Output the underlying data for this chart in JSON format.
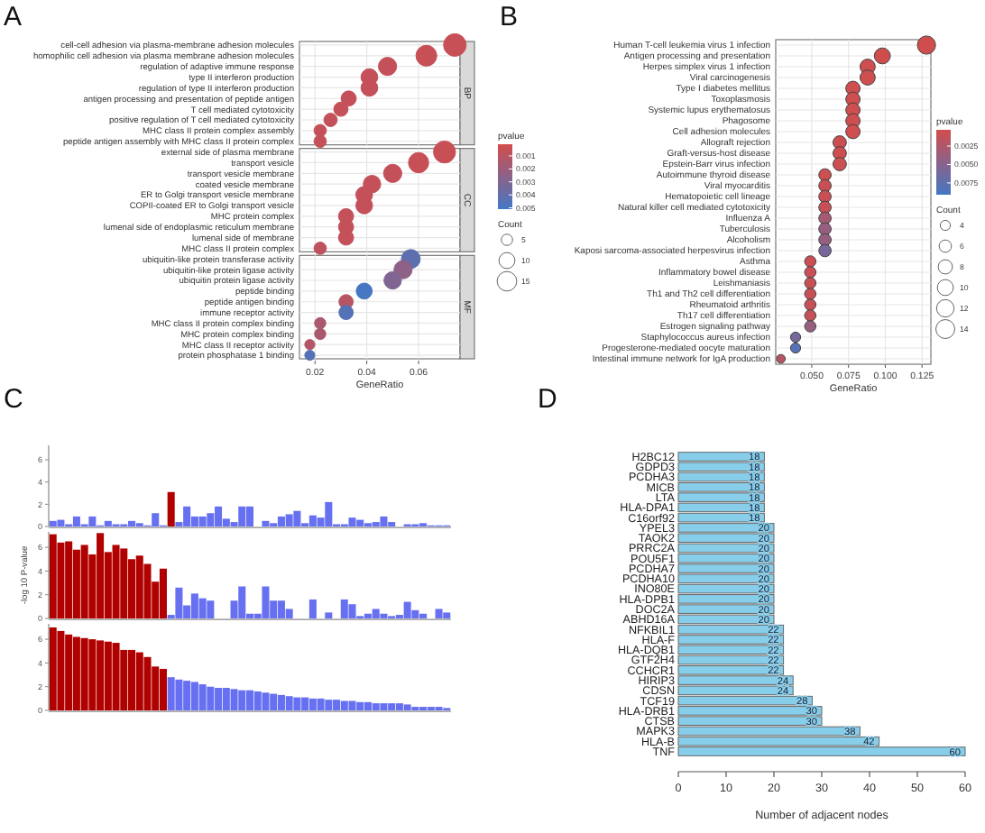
{
  "chart_data": [
    {
      "type": "scatter",
      "orientation": "horizontal",
      "title": "A",
      "xlabel": "GeneRatio",
      "categories": [
        "cell-cell adhesion via plasma-membrane adhesion molecules",
        "homophilic cell adhesion via plasma membrane adhesion molecules",
        "regulation of adaptive immune response",
        "type II interferon production",
        "regulation of type II interferon production",
        "antigen processing and presentation of peptide antigen",
        "T cell mediated cytotoxicity",
        "positive regulation of T cell mediated cytotoxicity",
        "MHC class II protein complex assembly",
        "peptide antigen assembly with MHC class II protein complex",
        "external side of plasma membrane",
        "transport vesicle",
        "transport vesicle membrane",
        "coated vesicle membrane",
        "ER to Golgi transport vesicle membrane",
        "COPII-coated ER to Golgi transport vesicle",
        "MHC protein complex",
        "lumenal side of endoplasmic reticulum membrane",
        "lumenal side of membrane",
        "MHC class II protein complex",
        "ubiquitin-like protein transferase activity",
        "ubiquitin-like protein ligase activity",
        "ubiquitin protein ligase activity",
        "peptide binding",
        "peptide antigen binding",
        "immune receptor activity",
        "MHC class II protein complex binding",
        "MHC protein complex binding",
        "MHC class II receptor activity",
        "protein phosphatase 1 binding"
      ],
      "series": [
        {
          "colors": [
            "#c75056",
            "#c75056",
            "#c45159",
            "#c45159",
            "#c45159",
            "#c45159",
            "#c45159",
            "#c45159",
            "#c45159",
            "#c45159",
            null,
            null,
            null,
            null,
            null,
            null,
            null,
            null,
            null,
            null,
            null,
            null,
            null,
            null,
            null,
            null,
            null,
            null,
            null,
            null
          ],
          "values": [
            0.074,
            0.063,
            0.048,
            0.041,
            0.041,
            0.033,
            0.03,
            0.026,
            0.022,
            0.022,
            null,
            null,
            null,
            null,
            null,
            null,
            null,
            null,
            null,
            null,
            null,
            null,
            null,
            null,
            null,
            null,
            null,
            null,
            null,
            null
          ],
          "sizes": [
            20,
            17,
            13,
            11,
            11,
            9,
            8,
            7,
            6,
            6,
            null,
            null,
            null,
            null,
            null,
            null,
            null,
            null,
            null,
            null,
            null,
            null,
            null,
            null,
            null,
            null,
            null,
            null,
            null,
            null
          ],
          "cvalues": [
            0.0005,
            0.0005,
            0.0006,
            0.0006,
            0.0006,
            0.0006,
            0.0006,
            0.0006,
            0.0006,
            0.0006,
            null,
            null,
            null,
            null,
            null,
            null,
            null,
            null,
            null,
            null,
            null,
            null,
            null,
            null,
            null,
            null,
            null,
            null,
            null,
            null
          ]
        },
        {
          "colors": [
            null,
            null,
            null,
            null,
            null,
            null,
            null,
            null,
            null,
            null,
            "#c75056",
            "#c75056",
            "#c45159",
            "#c45159",
            "#c45159",
            "#c45159",
            "#c45159",
            "#c45159",
            "#c45159",
            "#be535e",
            null,
            null,
            null,
            null,
            null,
            null,
            null,
            null,
            null,
            null
          ],
          "values": [
            null,
            null,
            null,
            null,
            null,
            null,
            null,
            null,
            null,
            null,
            0.07,
            0.06,
            0.05,
            0.042,
            0.039,
            0.039,
            0.032,
            0.032,
            0.032,
            0.022,
            null,
            null,
            null,
            null,
            null,
            null,
            null,
            null,
            null,
            null
          ],
          "sizes": [
            null,
            null,
            null,
            null,
            null,
            null,
            null,
            null,
            null,
            null,
            19,
            16,
            13,
            12,
            11,
            11,
            9,
            9,
            9,
            6,
            null,
            null,
            null,
            null,
            null,
            null,
            null,
            null,
            null,
            null
          ],
          "cvalues": [
            null,
            null,
            null,
            null,
            null,
            null,
            null,
            null,
            null,
            null,
            0.0005,
            0.0005,
            0.0006,
            0.0006,
            0.0006,
            0.0006,
            0.0006,
            0.0006,
            0.0006,
            0.0008,
            null,
            null,
            null,
            null,
            null,
            null,
            null,
            null,
            null,
            null
          ]
        },
        {
          "colors": [
            null,
            null,
            null,
            null,
            null,
            null,
            null,
            null,
            null,
            null,
            null,
            null,
            null,
            null,
            null,
            null,
            null,
            null,
            null,
            null,
            "#5e6faf",
            "#8e6186",
            "#806592",
            "#4776c2",
            "#b85562",
            "#5572b6",
            "#aa596e",
            "#aa596e",
            "#b35667",
            "#5572b6"
          ],
          "values": [
            null,
            null,
            null,
            null,
            null,
            null,
            null,
            null,
            null,
            null,
            null,
            null,
            null,
            null,
            null,
            null,
            null,
            null,
            null,
            null,
            0.057,
            0.054,
            0.05,
            0.039,
            0.032,
            0.032,
            0.022,
            0.022,
            0.018,
            0.018
          ],
          "sizes": [
            null,
            null,
            null,
            null,
            null,
            null,
            null,
            null,
            null,
            null,
            null,
            null,
            null,
            null,
            null,
            null,
            null,
            null,
            null,
            null,
            14,
            13,
            12,
            10,
            8,
            8,
            5,
            5,
            4,
            4
          ],
          "cvalues": [
            null,
            null,
            null,
            null,
            null,
            null,
            null,
            null,
            null,
            null,
            null,
            null,
            null,
            null,
            null,
            null,
            null,
            null,
            null,
            null,
            0.0042,
            0.0025,
            0.003,
            0.005,
            0.001,
            0.0045,
            0.0015,
            0.0015,
            0.0012,
            0.0045
          ]
        }
      ],
      "annotations": [
        "BP",
        "CC",
        "MF"
      ],
      "xlim": [
        0.014,
        0.076
      ],
      "xticks": [
        0.02,
        0.04,
        0.06
      ],
      "clabel": "pvalue",
      "clim": [
        0.0001,
        0.0051
      ],
      "cticks": [
        0.001,
        0.002,
        0.003,
        0.004,
        0.005
      ],
      "legend_title": "Count",
      "size_legend": [
        5,
        10,
        15
      ],
      "grid": true
    },
    {
      "type": "scatter",
      "orientation": "horizontal",
      "title": "B",
      "xlabel": "GeneRatio",
      "categories": [
        "Human T-cell leukemia virus 1 infection",
        "Antigen processing and presentation",
        "Herpes simplex virus 1 infection",
        "Viral carcinogenesis",
        "Type I diabetes mellitus",
        "Toxoplasmosis",
        "Systemic lupus erythematosus",
        "Phagosome",
        "Cell adhesion molecules",
        "Allograft rejection",
        "Graft-versus-host disease",
        "Epstein-Barr virus infection",
        "Autoimmune thyroid disease",
        "Viral myocarditis",
        "Hematopoietic cell lineage",
        "Natural killer cell mediated cytotoxicity",
        "Influenza A",
        "Tuberculosis",
        "Alcoholism",
        "Kaposi sarcoma-associated herpesvirus infection",
        "Asthma",
        "Inflammatory bowel disease",
        "Leishmaniasis",
        "Th1 and Th2 cell differentiation",
        "Rheumatoid arthritis",
        "Th17 cell differentiation",
        "Estrogen signaling pathway",
        "Staphylococcus aureus infection",
        "Progesterone-mediated oocyte maturation",
        "Intestinal immune network for IgA production"
      ],
      "values": [
        0.128,
        0.098,
        0.088,
        0.088,
        0.078,
        0.078,
        0.078,
        0.078,
        0.078,
        0.069,
        0.069,
        0.069,
        0.059,
        0.059,
        0.059,
        0.059,
        0.059,
        0.059,
        0.059,
        0.059,
        0.049,
        0.049,
        0.049,
        0.049,
        0.049,
        0.049,
        0.049,
        0.039,
        0.039,
        0.029
      ],
      "sizes": [
        13,
        10,
        9,
        9,
        8,
        8,
        8,
        8,
        8,
        7,
        7,
        7,
        6,
        6,
        6,
        6,
        6,
        6,
        6,
        6,
        5,
        5,
        5,
        5,
        5,
        5,
        5,
        4,
        4,
        3
      ],
      "cvalues": [
        0.0004,
        0.0004,
        0.0005,
        0.0005,
        0.0005,
        0.0005,
        0.0005,
        0.0005,
        0.0005,
        0.0006,
        0.0006,
        0.0007,
        0.0007,
        0.0008,
        0.0008,
        0.001,
        0.003,
        0.004,
        0.004,
        0.006,
        0.0008,
        0.0008,
        0.0009,
        0.001,
        0.001,
        0.0012,
        0.004,
        0.006,
        0.008,
        0.002
      ],
      "xlim": [
        0.0255,
        0.131
      ],
      "xticks": [
        {
          "value": 0.05,
          "label": "0.050"
        },
        {
          "value": 0.075,
          "label": "0.075"
        },
        {
          "value": 0.1,
          "label": "0.100"
        },
        {
          "value": 0.125,
          "label": "0.125"
        }
      ],
      "clabel": "pvalue",
      "clim": [
        0.0003,
        0.0091
      ],
      "cticks": [
        {
          "value": 0.0025,
          "label": "0.0025"
        },
        {
          "value": 0.005,
          "label": "0.0050"
        },
        {
          "value": 0.0075,
          "label": "0.0075"
        }
      ],
      "legend_title": "Count",
      "size_legend": [
        4,
        6,
        8,
        10,
        12,
        14
      ],
      "grid": true
    },
    {
      "type": "bar",
      "title": "C",
      "categories": [
        null,
        null,
        null,
        null,
        null,
        null,
        null,
        null,
        null,
        null,
        null,
        null,
        null,
        null,
        null,
        null,
        null,
        null,
        null,
        null,
        null,
        null,
        null,
        null,
        null,
        null,
        null,
        null,
        null,
        null,
        null,
        null,
        null,
        null,
        null,
        null,
        null,
        null,
        null,
        null,
        null,
        null,
        null,
        null,
        null,
        null,
        null,
        null,
        null,
        null,
        null
      ],
      "values": [
        0.5,
        0.6,
        0.2,
        0.9,
        0.2,
        0.9,
        0.1,
        0.5,
        0.2,
        0.2,
        0.5,
        0.3,
        0.1,
        1.2,
        0.1,
        3.1,
        0.4,
        1.8,
        0.9,
        0.9,
        1.2,
        1.8,
        0.7,
        0.4,
        1.8,
        1.8,
        0,
        0.5,
        0.3,
        0.9,
        1.1,
        1.4,
        0.3,
        1.0,
        0.8,
        2.2,
        0.2,
        0.2,
        0.8,
        0.6,
        0.3,
        0.4,
        0.9,
        0.4,
        0,
        0.2,
        0.2,
        0.3,
        0.1,
        0.1,
        0.1
      ],
      "colors": [
        "#6670f0",
        "#6670f0",
        "#6670f0",
        "#6670f0",
        "#6670f0",
        "#6670f0",
        "#6670f0",
        "#6670f0",
        "#6670f0",
        "#6670f0",
        "#6670f0",
        "#6670f0",
        "#6670f0",
        "#6670f0",
        "#6670f0",
        "#b00000",
        "#6670f0",
        "#6670f0",
        "#6670f0",
        "#6670f0",
        "#6670f0",
        "#6670f0",
        "#6670f0",
        "#6670f0",
        "#6670f0",
        "#6670f0",
        "#6670f0",
        "#6670f0",
        "#6670f0",
        "#6670f0",
        "#6670f0",
        "#6670f0",
        "#6670f0",
        "#6670f0",
        "#6670f0",
        "#6670f0",
        "#6670f0",
        "#6670f0",
        "#6670f0",
        "#6670f0",
        "#6670f0",
        "#6670f0",
        "#6670f0",
        "#6670f0",
        "#6670f0",
        "#6670f0",
        "#6670f0",
        "#6670f0",
        "#6670f0",
        "#6670f0",
        "#6670f0"
      ],
      "ylim": [
        0,
        7.3
      ],
      "yticks": [
        0,
        2,
        4,
        6
      ],
      "tick_labels": "y"
    },
    {
      "type": "bar",
      "ylabel": "-log 10 P-value",
      "categories": [
        null,
        null,
        null,
        null,
        null,
        null,
        null,
        null,
        null,
        null,
        null,
        null,
        null,
        null,
        null,
        null,
        null,
        null,
        null,
        null,
        null,
        null,
        null,
        null,
        null,
        null,
        null,
        null,
        null,
        null,
        null,
        null,
        null,
        null,
        null,
        null,
        null,
        null,
        null,
        null,
        null,
        null,
        null,
        null,
        null,
        null,
        null,
        null,
        null,
        null,
        null
      ],
      "values": [
        7.1,
        6.4,
        6.5,
        5.8,
        6.2,
        5.4,
        7.2,
        5.6,
        6.2,
        5.9,
        5.0,
        5.3,
        4.6,
        3.1,
        4.2,
        0.3,
        2.6,
        1.1,
        2.1,
        1.7,
        1.5,
        0,
        0,
        1.5,
        2.7,
        0.4,
        0.4,
        2.7,
        1.5,
        1.5,
        0.8,
        0,
        0,
        1.6,
        0,
        0.5,
        0,
        1.6,
        1.2,
        0.2,
        0.4,
        0.8,
        0.4,
        0.2,
        0.3,
        1.4,
        0.7,
        0.4,
        0,
        0.8,
        0.5
      ],
      "colors": [
        "#b00000",
        "#b00000",
        "#b00000",
        "#b00000",
        "#b00000",
        "#b00000",
        "#b00000",
        "#b00000",
        "#b00000",
        "#b00000",
        "#b00000",
        "#b00000",
        "#b00000",
        "#b00000",
        "#b00000",
        "#6670f0",
        "#6670f0",
        "#6670f0",
        "#6670f0",
        "#6670f0",
        "#6670f0",
        "#6670f0",
        "#6670f0",
        "#6670f0",
        "#6670f0",
        "#6670f0",
        "#6670f0",
        "#6670f0",
        "#6670f0",
        "#6670f0",
        "#6670f0",
        "#6670f0",
        "#6670f0",
        "#6670f0",
        "#6670f0",
        "#6670f0",
        "#6670f0",
        "#6670f0",
        "#6670f0",
        "#6670f0",
        "#6670f0",
        "#6670f0",
        "#6670f0",
        "#6670f0",
        "#6670f0",
        "#6670f0",
        "#6670f0",
        "#6670f0",
        "#6670f0",
        "#6670f0",
        "#6670f0"
      ],
      "ylim": [
        0,
        7.3
      ],
      "yticks": [
        0,
        2,
        4,
        6
      ],
      "tick_labels": "y"
    },
    {
      "type": "bar",
      "categories": [
        null,
        null,
        null,
        null,
        null,
        null,
        null,
        null,
        null,
        null,
        null,
        null,
        null,
        null,
        null,
        null,
        null,
        null,
        null,
        null,
        null,
        null,
        null,
        null,
        null,
        null,
        null,
        null,
        null,
        null,
        null,
        null,
        null,
        null,
        null,
        null,
        null,
        null,
        null,
        null,
        null,
        null,
        null,
        null,
        null,
        null,
        null,
        null,
        null,
        null,
        null
      ],
      "values": [
        7.0,
        6.7,
        6.4,
        6.2,
        6.1,
        6.0,
        5.9,
        5.8,
        5.7,
        5.1,
        5.1,
        4.9,
        4.5,
        3.7,
        3.5,
        2.8,
        2.6,
        2.5,
        2.4,
        2.2,
        2.0,
        1.9,
        1.9,
        1.8,
        1.7,
        1.7,
        1.6,
        1.5,
        1.4,
        1.3,
        1.2,
        1.1,
        1.1,
        1.0,
        1.0,
        0.9,
        0.9,
        0.8,
        0.8,
        0.7,
        0.7,
        0.6,
        0.6,
        0.6,
        0.6,
        0.5,
        0.3,
        0.3,
        0.3,
        0.3,
        0.2
      ],
      "colors": [
        "#b00000",
        "#b00000",
        "#b00000",
        "#b00000",
        "#b00000",
        "#b00000",
        "#b00000",
        "#b00000",
        "#b00000",
        "#b00000",
        "#b00000",
        "#b00000",
        "#b00000",
        "#b00000",
        "#b00000",
        "#6670f0",
        "#6670f0",
        "#6670f0",
        "#6670f0",
        "#6670f0",
        "#6670f0",
        "#6670f0",
        "#6670f0",
        "#6670f0",
        "#6670f0",
        "#6670f0",
        "#6670f0",
        "#6670f0",
        "#6670f0",
        "#6670f0",
        "#6670f0",
        "#6670f0",
        "#6670f0",
        "#6670f0",
        "#6670f0",
        "#6670f0",
        "#6670f0",
        "#6670f0",
        "#6670f0",
        "#6670f0",
        "#6670f0",
        "#6670f0",
        "#6670f0",
        "#6670f0",
        "#6670f0",
        "#6670f0",
        "#6670f0",
        "#6670f0",
        "#6670f0",
        "#6670f0",
        "#6670f0"
      ],
      "ylim": [
        0,
        7.3
      ],
      "yticks": [
        0,
        2,
        4,
        6
      ]
    },
    {
      "type": "bar",
      "orientation": "horizontal",
      "title": "D",
      "xlabel": "Number of adjacent nodes",
      "categories": [
        "H2BC12",
        "GDPD3",
        "PCDHA3",
        "MICB",
        "LTA",
        "HLA-DPA1",
        "C16orf92",
        "YPEL3",
        "TAOK2",
        "PRRC2A",
        "POU5F1",
        "PCDHA7",
        "PCDHA10",
        "INO80E",
        "HLA-DPB1",
        "DOC2A",
        "ABHD16A",
        "NFKBIL1",
        "HLA-F",
        "HLA-DQB1",
        "GTF2H4",
        "CCHCR1",
        "HIRIP3",
        "CDSN",
        "TCF19",
        "HLA-DRB1",
        "CTSB",
        "MAPK3",
        "HLA-B",
        "TNF"
      ],
      "values": [
        18,
        18,
        18,
        18,
        18,
        18,
        18,
        20,
        20,
        20,
        20,
        20,
        20,
        20,
        20,
        20,
        20,
        22,
        22,
        22,
        22,
        22,
        24,
        24,
        28,
        30,
        30,
        38,
        42,
        60
      ],
      "color": "#87ceeb",
      "xlim": [
        0,
        60
      ],
      "xticks": [
        0,
        10,
        20,
        30,
        40,
        50,
        60
      ],
      "data_labels": true
    }
  ]
}
